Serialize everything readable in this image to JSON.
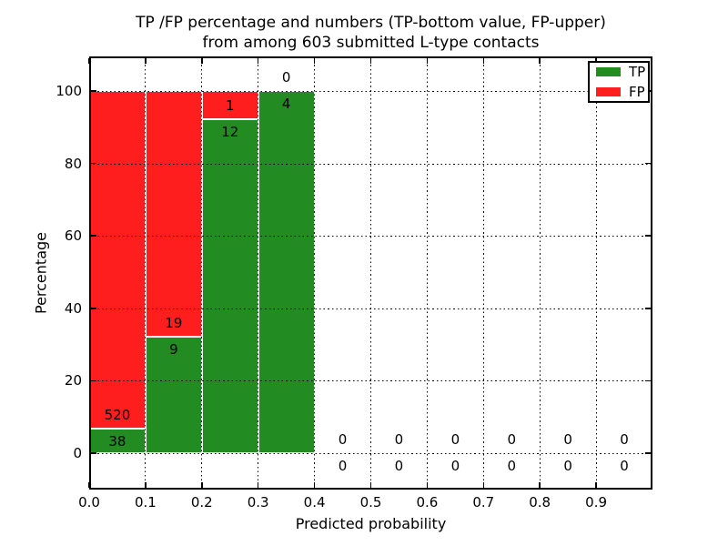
{
  "title": {
    "line1": "TP /FP percentage and numbers (TP-bottom value, FP-upper)",
    "line2": "from among 603 submitted L-type contacts"
  },
  "x_axis": {
    "label": "Predicted probability",
    "ticks": [
      "0.0",
      "0.1",
      "0.2",
      "0.3",
      "0.4",
      "0.5",
      "0.6",
      "0.7",
      "0.8",
      "0.9"
    ]
  },
  "y_axis": {
    "label": "Percentage",
    "ticks": [
      "0",
      "20",
      "40",
      "60",
      "80",
      "100"
    ],
    "tick_values": [
      0,
      20,
      40,
      60,
      80,
      100
    ]
  },
  "legend": {
    "items": [
      {
        "label": "TP",
        "color": "#228b22"
      },
      {
        "label": "FP",
        "color": "#ff1e1e"
      }
    ]
  },
  "chart_data": {
    "type": "bar",
    "stacked": true,
    "normalization": "each bar scaled so TP+FP = 100%",
    "title": "TP /FP percentage and numbers (TP-bottom value, FP-upper) from among 603 submitted L-type contacts",
    "xlabel": "Predicted probability",
    "ylabel": "Percentage",
    "xlim": [
      0.0,
      1.0
    ],
    "ylim": [
      -10,
      110
    ],
    "grid": "dotted black, both axes, drawn above bars",
    "legend_position": "upper right",
    "bin_width": 0.1,
    "bin_starts": [
      0.0,
      0.1,
      0.2,
      0.3,
      0.4,
      0.5,
      0.6,
      0.7,
      0.8,
      0.9
    ],
    "series": [
      {
        "name": "TP",
        "color": "#228b22",
        "counts": [
          38,
          9,
          12,
          4,
          0,
          0,
          0,
          0,
          0,
          0
        ]
      },
      {
        "name": "FP",
        "color": "#ff1e1e",
        "counts": [
          520,
          19,
          1,
          0,
          0,
          0,
          0,
          0,
          0,
          0
        ]
      }
    ],
    "tp_percent_heights": [
      6.81,
      32.14,
      92.31,
      100,
      0,
      0,
      0,
      0,
      0,
      0
    ],
    "total_submitted": 603
  }
}
